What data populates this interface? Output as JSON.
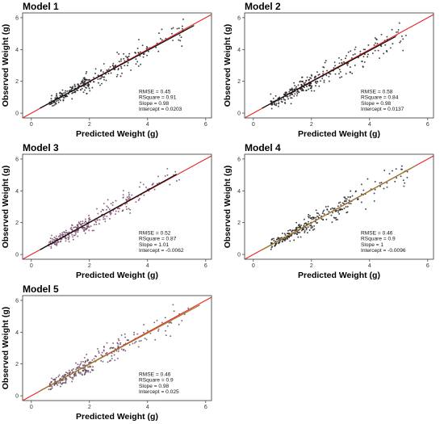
{
  "chart_data": [
    {
      "type": "scatter",
      "title": "Model 1",
      "xlabel": "Predicted Weight (g)",
      "ylabel": "Observed Weight (g)",
      "xlim": [
        -0.3,
        6.2
      ],
      "ylim": [
        -0.3,
        6.3
      ],
      "xticks": [
        "0",
        "2",
        "4",
        "6"
      ],
      "yticks": [
        "0",
        "2",
        "4",
        "6"
      ],
      "grid": false,
      "stats": [
        "RMSE = 0.45",
        "RSquare = 0.91",
        "Slope = 0.98",
        "Intercept = 0.0203"
      ],
      "fit_line": {
        "slope": 0.98,
        "intercept": 0.0203,
        "x_range": [
          0.3,
          5.6
        ],
        "color": "#111111"
      },
      "identity_line": {
        "color": "#e8211f"
      },
      "points": [
        [
          0.8,
          0.7
        ],
        [
          0.9,
          0.9
        ],
        [
          1.0,
          0.8
        ],
        [
          1.1,
          1.0
        ],
        [
          1.2,
          1.1
        ],
        [
          1.3,
          1.4
        ],
        [
          1.5,
          1.3
        ],
        [
          1.6,
          1.8
        ],
        [
          1.8,
          1.7
        ],
        [
          2.0,
          2.1
        ],
        [
          2.2,
          2.5
        ],
        [
          2.4,
          2.2
        ],
        [
          2.6,
          2.7
        ],
        [
          2.8,
          3.0
        ],
        [
          3.0,
          2.8
        ],
        [
          3.3,
          3.5
        ],
        [
          3.6,
          3.4
        ],
        [
          4.0,
          4.1
        ],
        [
          4.5,
          4.6
        ],
        [
          5.2,
          5.3
        ],
        [
          0.7,
          1.1
        ],
        [
          1.4,
          0.9
        ],
        [
          2.1,
          1.6
        ],
        [
          2.5,
          3.1
        ],
        [
          1.9,
          2.6
        ]
      ],
      "point_color": "#222222"
    },
    {
      "type": "scatter",
      "title": "Model 2",
      "xlabel": "Predicted Weight (g)",
      "ylabel": "Observed Weight (g)",
      "xlim": [
        -0.3,
        6.2
      ],
      "ylim": [
        -0.3,
        6.3
      ],
      "xticks": [
        "0",
        "2",
        "4",
        "6"
      ],
      "yticks": [
        "0",
        "2",
        "4",
        "6"
      ],
      "grid": false,
      "stats": [
        "RMSE = 0.58",
        "RSquare = 0.84",
        "Slope = 0.98",
        "Intercept = 0.0137"
      ],
      "fit_line": {
        "slope": 0.98,
        "intercept": 0.0137,
        "x_range": [
          0.3,
          4.9
        ],
        "color": "#111111"
      },
      "identity_line": {
        "color": "#e8211f"
      },
      "points": [
        [
          0.8,
          0.6
        ],
        [
          0.9,
          1.0
        ],
        [
          1.0,
          0.7
        ],
        [
          1.1,
          1.2
        ],
        [
          1.2,
          0.9
        ],
        [
          1.4,
          1.5
        ],
        [
          1.5,
          1.1
        ],
        [
          1.7,
          2.0
        ],
        [
          1.9,
          1.5
        ],
        [
          2.0,
          2.4
        ],
        [
          2.2,
          2.0
        ],
        [
          2.4,
          2.9
        ],
        [
          2.6,
          2.3
        ],
        [
          2.8,
          3.2
        ],
        [
          3.0,
          2.6
        ],
        [
          3.2,
          3.6
        ],
        [
          3.5,
          3.0
        ],
        [
          3.8,
          4.0
        ],
        [
          4.2,
          4.4
        ],
        [
          4.6,
          4.8
        ],
        [
          0.6,
          1.2
        ],
        [
          1.3,
          0.6
        ],
        [
          2.1,
          1.4
        ],
        [
          2.5,
          3.3
        ],
        [
          3.4,
          2.5
        ]
      ],
      "point_color": "#222222"
    },
    {
      "type": "scatter",
      "title": "Model 3",
      "xlabel": "Predicted Weight (g)",
      "ylabel": "Observed Weight (g)",
      "xlim": [
        -0.3,
        6.2
      ],
      "ylim": [
        -0.3,
        6.3
      ],
      "xticks": [
        "0",
        "2",
        "4",
        "6"
      ],
      "yticks": [
        "0",
        "2",
        "4",
        "6"
      ],
      "grid": false,
      "stats": [
        "RMSE = 0.52",
        "RSquare = 0.87",
        "Slope = 1.01",
        "Intercept = -0.0062"
      ],
      "fit_line": {
        "slope": 1.01,
        "intercept": -0.0062,
        "x_range": [
          0.3,
          5.0
        ],
        "color": "#111111"
      },
      "identity_line": {
        "color": "#e8211f"
      },
      "points": [
        [
          0.8,
          0.7
        ],
        [
          0.9,
          1.0
        ],
        [
          1.0,
          0.8
        ],
        [
          1.1,
          1.1
        ],
        [
          1.2,
          1.0
        ],
        [
          1.4,
          1.4
        ],
        [
          1.5,
          1.2
        ],
        [
          1.7,
          1.9
        ],
        [
          1.9,
          1.6
        ],
        [
          2.0,
          2.3
        ],
        [
          2.2,
          2.1
        ],
        [
          2.4,
          2.7
        ],
        [
          2.6,
          2.4
        ],
        [
          2.8,
          3.1
        ],
        [
          3.0,
          2.7
        ],
        [
          3.3,
          3.6
        ],
        [
          3.6,
          3.3
        ],
        [
          4.0,
          4.1
        ],
        [
          4.4,
          4.5
        ],
        [
          4.9,
          5.0
        ],
        [
          0.7,
          1.2
        ],
        [
          1.3,
          0.8
        ],
        [
          2.1,
          1.5
        ],
        [
          2.5,
          3.2
        ],
        [
          3.4,
          2.6
        ]
      ],
      "point_color": "#7a4a6e"
    },
    {
      "type": "scatter",
      "title": "Model 4",
      "xlabel": "Predicted Weight (g)",
      "ylabel": "Observed Weight (g)",
      "xlim": [
        -0.3,
        6.2
      ],
      "ylim": [
        -0.3,
        6.3
      ],
      "xticks": [
        "0",
        "2",
        "4",
        "6"
      ],
      "yticks": [
        "0",
        "2",
        "4",
        "6"
      ],
      "grid": false,
      "stats": [
        "RMSE = 0.46",
        "RSquare = 0.9",
        "Slope = 1",
        "Intercept = -0.0096"
      ],
      "fit_line": {
        "slope": 1.0,
        "intercept": -0.0096,
        "x_range": [
          0.3,
          5.6
        ],
        "color": "#9a7a30"
      },
      "identity_line": {
        "color": "#e8211f"
      },
      "points": [
        [
          0.8,
          0.7
        ],
        [
          0.9,
          0.9
        ],
        [
          1.0,
          0.8
        ],
        [
          1.1,
          1.0
        ],
        [
          1.2,
          1.1
        ],
        [
          1.3,
          1.3
        ],
        [
          1.5,
          1.3
        ],
        [
          1.6,
          1.7
        ],
        [
          1.8,
          1.7
        ],
        [
          2.0,
          2.0
        ],
        [
          2.2,
          2.4
        ],
        [
          2.4,
          2.2
        ],
        [
          2.6,
          2.7
        ],
        [
          2.8,
          2.9
        ],
        [
          3.0,
          2.8
        ],
        [
          3.3,
          3.4
        ],
        [
          3.6,
          3.5
        ],
        [
          4.0,
          4.0
        ],
        [
          4.6,
          4.5
        ],
        [
          5.3,
          5.2
        ],
        [
          0.7,
          1.0
        ],
        [
          1.4,
          0.9
        ],
        [
          2.1,
          1.6
        ],
        [
          2.5,
          3.0
        ],
        [
          1.9,
          2.5
        ]
      ],
      "point_color": "#222222"
    },
    {
      "type": "scatter",
      "title": "Model 5",
      "xlabel": "Predicted Weight (g)",
      "ylabel": "Observed Weight (g)",
      "xlim": [
        -0.3,
        6.2
      ],
      "ylim": [
        -0.3,
        6.3
      ],
      "xticks": [
        "0",
        "2",
        "4",
        "6"
      ],
      "yticks": [
        "0",
        "2",
        "4",
        "6"
      ],
      "grid": false,
      "stats": [
        "RMSE = 0.46",
        "RSquare = 0.9",
        "Slope = 0.98",
        "Intercept = 0.025"
      ],
      "fit_line": {
        "slope": 0.98,
        "intercept": 0.025,
        "x_range": [
          0.3,
          5.8
        ],
        "color": "#9a7a30"
      },
      "identity_line": {
        "color": "#e8211f"
      },
      "points": [
        [
          0.8,
          0.7
        ],
        [
          0.9,
          0.9
        ],
        [
          1.0,
          0.8
        ],
        [
          1.1,
          1.0
        ],
        [
          1.2,
          1.1
        ],
        [
          1.3,
          1.4
        ],
        [
          1.5,
          1.3
        ],
        [
          1.6,
          1.8
        ],
        [
          1.8,
          1.7
        ],
        [
          2.0,
          2.1
        ],
        [
          2.2,
          2.5
        ],
        [
          2.4,
          2.2
        ],
        [
          2.6,
          2.7
        ],
        [
          2.8,
          3.0
        ],
        [
          3.0,
          2.8
        ],
        [
          3.3,
          3.5
        ],
        [
          3.6,
          3.4
        ],
        [
          4.0,
          4.1
        ],
        [
          4.5,
          4.6
        ],
        [
          5.4,
          5.5
        ],
        [
          0.7,
          1.1
        ],
        [
          1.4,
          0.9
        ],
        [
          2.1,
          1.6
        ],
        [
          2.5,
          3.1
        ],
        [
          1.9,
          2.6
        ]
      ],
      "point_color": "#6a4a5e"
    }
  ]
}
